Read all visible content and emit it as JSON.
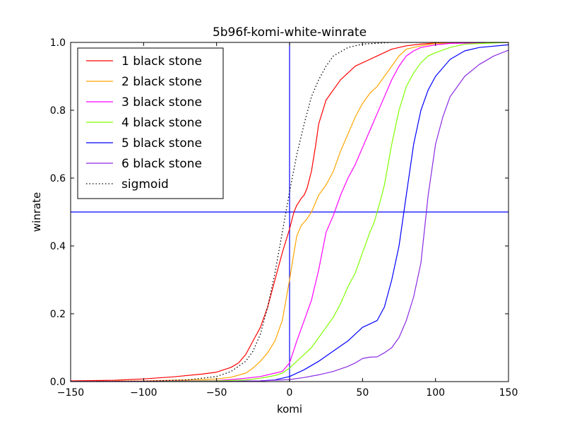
{
  "chart_data": {
    "type": "line",
    "title": "5b96f-komi-white-winrate",
    "xlabel": "komi",
    "ylabel": "winrate",
    "xlim": [
      -150,
      150
    ],
    "ylim": [
      0.0,
      1.0
    ],
    "xticks": [
      -150,
      -100,
      -50,
      0,
      50,
      100,
      150
    ],
    "xtick_labels": [
      "−150",
      "−100",
      "−50",
      "0",
      "50",
      "100",
      "150"
    ],
    "yticks": [
      0.0,
      0.2,
      0.4,
      0.6,
      0.8,
      1.0
    ],
    "ytick_labels": [
      "0.0",
      "0.2",
      "0.4",
      "0.6",
      "0.8",
      "1.0"
    ],
    "grid": false,
    "legend_position": "top-left",
    "reference_lines": [
      {
        "orientation": "vertical",
        "value": 0,
        "color": "#0000ff"
      },
      {
        "orientation": "horizontal",
        "value": 0.5,
        "color": "#0000ff"
      }
    ],
    "series": [
      {
        "name": "1 black stone",
        "color": "#ff0000",
        "style": "solid",
        "x": [
          -150,
          -120,
          -100,
          -80,
          -60,
          -50,
          -40,
          -35,
          -30,
          -25,
          -20,
          -15,
          -10,
          -5,
          0,
          3,
          5,
          8,
          10,
          12,
          15,
          18,
          20,
          25,
          30,
          35,
          40,
          45,
          50,
          55,
          60,
          70,
          80,
          90,
          100,
          120,
          150
        ],
        "y": [
          0.002,
          0.004,
          0.008,
          0.014,
          0.022,
          0.028,
          0.042,
          0.055,
          0.08,
          0.12,
          0.16,
          0.22,
          0.3,
          0.38,
          0.45,
          0.5,
          0.52,
          0.54,
          0.55,
          0.57,
          0.62,
          0.7,
          0.76,
          0.83,
          0.86,
          0.89,
          0.91,
          0.93,
          0.94,
          0.95,
          0.96,
          0.98,
          0.99,
          0.995,
          0.998,
          0.999,
          1.0
        ]
      },
      {
        "name": "2 black stone",
        "color": "#ffa500",
        "style": "solid",
        "x": [
          -150,
          -100,
          -80,
          -60,
          -50,
          -40,
          -30,
          -25,
          -20,
          -15,
          -10,
          -5,
          0,
          3,
          5,
          8,
          10,
          12,
          15,
          18,
          20,
          25,
          30,
          35,
          40,
          45,
          50,
          55,
          60,
          65,
          70,
          75,
          80,
          90,
          100,
          150
        ],
        "y": [
          0.0,
          0.002,
          0.004,
          0.006,
          0.008,
          0.013,
          0.025,
          0.04,
          0.06,
          0.085,
          0.12,
          0.18,
          0.3,
          0.38,
          0.43,
          0.46,
          0.47,
          0.48,
          0.5,
          0.53,
          0.55,
          0.58,
          0.62,
          0.68,
          0.73,
          0.78,
          0.82,
          0.85,
          0.87,
          0.9,
          0.93,
          0.96,
          0.98,
          0.99,
          0.997,
          1.0
        ]
      },
      {
        "name": "3 black stone",
        "color": "#ff00ff",
        "style": "solid",
        "x": [
          -150,
          -100,
          -50,
          -40,
          -30,
          -20,
          -10,
          -5,
          0,
          5,
          10,
          15,
          20,
          25,
          30,
          35,
          40,
          45,
          50,
          55,
          60,
          65,
          70,
          75,
          80,
          85,
          90,
          100,
          110,
          150
        ],
        "y": [
          0.0,
          0.001,
          0.003,
          0.006,
          0.01,
          0.015,
          0.025,
          0.03,
          0.055,
          0.12,
          0.18,
          0.24,
          0.33,
          0.44,
          0.49,
          0.55,
          0.6,
          0.64,
          0.69,
          0.74,
          0.79,
          0.84,
          0.89,
          0.93,
          0.96,
          0.975,
          0.985,
          0.993,
          0.997,
          1.0
        ]
      },
      {
        "name": "4 black stone",
        "color": "#7fff00",
        "style": "solid",
        "x": [
          -150,
          -100,
          -50,
          -30,
          -20,
          -10,
          -5,
          0,
          5,
          10,
          15,
          20,
          25,
          30,
          35,
          40,
          45,
          50,
          55,
          58,
          60,
          62,
          65,
          70,
          75,
          80,
          85,
          90,
          95,
          100,
          110,
          120,
          150
        ],
        "y": [
          0.0,
          0.0,
          0.002,
          0.005,
          0.01,
          0.018,
          0.025,
          0.04,
          0.06,
          0.08,
          0.1,
          0.13,
          0.16,
          0.19,
          0.23,
          0.28,
          0.32,
          0.38,
          0.44,
          0.47,
          0.5,
          0.53,
          0.58,
          0.7,
          0.8,
          0.87,
          0.91,
          0.94,
          0.96,
          0.97,
          0.985,
          0.995,
          1.0
        ]
      },
      {
        "name": "5 black stone",
        "color": "#0000ff",
        "style": "solid",
        "x": [
          -150,
          -50,
          -20,
          -10,
          0,
          10,
          20,
          30,
          40,
          45,
          50,
          55,
          60,
          65,
          70,
          75,
          80,
          85,
          90,
          95,
          100,
          110,
          120,
          130,
          150
        ],
        "y": [
          0.0,
          0.0,
          0.002,
          0.005,
          0.015,
          0.035,
          0.06,
          0.09,
          0.12,
          0.14,
          0.16,
          0.17,
          0.18,
          0.22,
          0.3,
          0.4,
          0.55,
          0.7,
          0.8,
          0.86,
          0.9,
          0.95,
          0.975,
          0.985,
          0.993
        ]
      },
      {
        "name": "6 black stone",
        "color": "#8a2be2",
        "style": "solid",
        "x": [
          -150,
          -50,
          -20,
          0,
          10,
          20,
          30,
          40,
          45,
          50,
          55,
          60,
          65,
          70,
          75,
          80,
          85,
          90,
          95,
          100,
          105,
          110,
          120,
          130,
          140,
          150
        ],
        "y": [
          0.0,
          0.0,
          0.002,
          0.006,
          0.012,
          0.02,
          0.03,
          0.045,
          0.055,
          0.068,
          0.072,
          0.073,
          0.085,
          0.1,
          0.13,
          0.18,
          0.25,
          0.35,
          0.55,
          0.7,
          0.78,
          0.84,
          0.9,
          0.935,
          0.96,
          0.977
        ]
      },
      {
        "name": "sigmoid",
        "color": "#000000",
        "style": "dotted",
        "x": [
          -150,
          -100,
          -70,
          -50,
          -40,
          -30,
          -25,
          -20,
          -15,
          -10,
          -5,
          0,
          5,
          10,
          15,
          20,
          25,
          30,
          40,
          50,
          70,
          100,
          150
        ],
        "y": [
          0.0,
          0.001,
          0.005,
          0.015,
          0.03,
          0.06,
          0.09,
          0.14,
          0.22,
          0.32,
          0.44,
          0.56,
          0.67,
          0.76,
          0.84,
          0.89,
          0.93,
          0.96,
          0.985,
          0.995,
          1.0,
          1.0,
          1.0
        ]
      }
    ]
  }
}
